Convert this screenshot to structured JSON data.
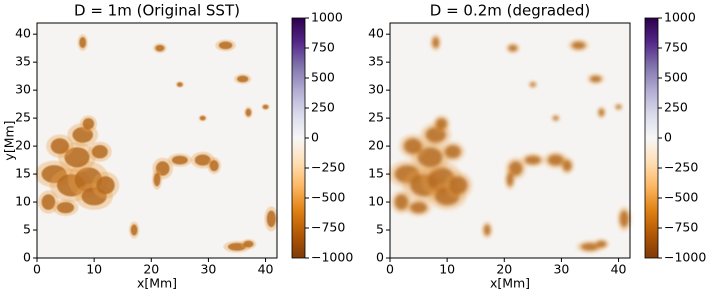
{
  "chart_data": [
    {
      "type": "heatmap",
      "title": "D = 1m (Original SST)",
      "x_label": "x[Mm]",
      "y_label": "y[Mm]",
      "xlim": [
        0,
        42
      ],
      "ylim": [
        0,
        42
      ],
      "xticks": [
        0,
        10,
        20,
        30,
        40
      ],
      "yticks": [
        0,
        5,
        10,
        15,
        20,
        25,
        30,
        35,
        40
      ],
      "clim": [
        -1000,
        1000
      ],
      "cticks": [
        {
          "value": -1000,
          "label": "−1000"
        },
        {
          "value": -750,
          "label": "−750"
        },
        {
          "value": -500,
          "label": "−500"
        },
        {
          "value": -250,
          "label": "−250"
        },
        0,
        250,
        500,
        750,
        1000
      ],
      "colormap": [
        "#7f3b08",
        "#b35806",
        "#e08214",
        "#fdb863",
        "#fee0b6",
        "#f7f7f7",
        "#d8daeb",
        "#b2abd2",
        "#8073ac",
        "#542788",
        "#2d004b"
      ]
    },
    {
      "type": "heatmap",
      "title": "D = 0.2m (degraded)",
      "x_label": "x[Mm]",
      "xlim": [
        0,
        42
      ],
      "ylim": [
        0,
        42
      ],
      "xticks": [
        0,
        10,
        20,
        30,
        40
      ],
      "yticks": [
        0,
        5,
        10,
        15,
        20,
        25,
        30,
        35,
        40
      ],
      "clim": [
        -1000,
        1000
      ],
      "cticks": [
        {
          "value": -1000,
          "label": "−1000"
        },
        {
          "value": -750,
          "label": "−750"
        },
        {
          "value": -500,
          "label": "−500"
        },
        {
          "value": -250,
          "label": "−250"
        },
        0,
        250,
        500,
        750,
        1000
      ],
      "colormap": [
        "#7f3b08",
        "#b35806",
        "#e08214",
        "#fdb863",
        "#fee0b6",
        "#f7f7f7",
        "#d8daeb",
        "#b2abd2",
        "#8073ac",
        "#542788",
        "#2d004b"
      ]
    }
  ]
}
